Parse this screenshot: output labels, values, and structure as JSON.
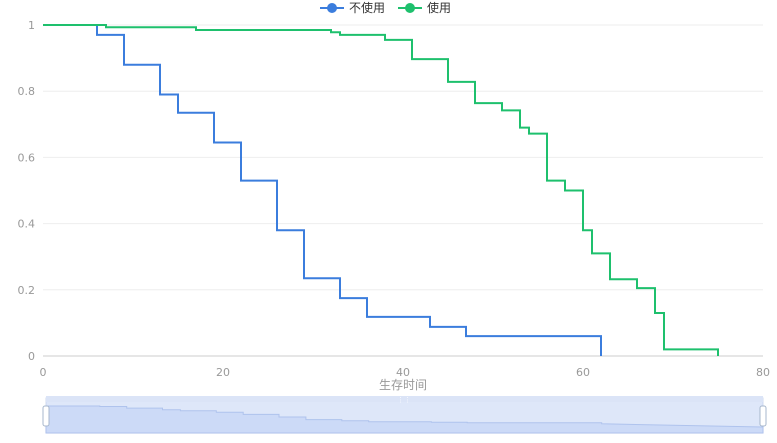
{
  "chart_data": {
    "type": "line",
    "step": true,
    "xlabel": "生存时间",
    "ylabel": "",
    "xlim": [
      0,
      80
    ],
    "ylim": [
      0,
      1
    ],
    "x_ticks": [
      "0",
      "20",
      "40",
      "60",
      "80"
    ],
    "y_ticks": [
      "0",
      "0.2",
      "0.4",
      "0.6",
      "0.8",
      "1"
    ],
    "grid": "horizontal",
    "legend_position": "top-center",
    "series": [
      {
        "name": "不使用",
        "color": "#3b7ddd",
        "points": [
          [
            0,
            1
          ],
          [
            6,
            1
          ],
          [
            6,
            0.97
          ],
          [
            9,
            0.97
          ],
          [
            9,
            0.88
          ],
          [
            13,
            0.88
          ],
          [
            13,
            0.79
          ],
          [
            15,
            0.79
          ],
          [
            15,
            0.735
          ],
          [
            19,
            0.735
          ],
          [
            19,
            0.645
          ],
          [
            22,
            0.645
          ],
          [
            22,
            0.53
          ],
          [
            26,
            0.53
          ],
          [
            26,
            0.38
          ],
          [
            29,
            0.38
          ],
          [
            29,
            0.235
          ],
          [
            33,
            0.235
          ],
          [
            33,
            0.175
          ],
          [
            36,
            0.175
          ],
          [
            36,
            0.118
          ],
          [
            43,
            0.118
          ],
          [
            43,
            0.088
          ],
          [
            47,
            0.088
          ],
          [
            47,
            0.06
          ],
          [
            62,
            0.06
          ],
          [
            62,
            0
          ]
        ]
      },
      {
        "name": "使用",
        "color": "#1ec06d",
        "points": [
          [
            0,
            1
          ],
          [
            7,
            1
          ],
          [
            7,
            0.993
          ],
          [
            17,
            0.993
          ],
          [
            17,
            0.985
          ],
          [
            32,
            0.985
          ],
          [
            32,
            0.978
          ],
          [
            33,
            0.978
          ],
          [
            33,
            0.97
          ],
          [
            38,
            0.97
          ],
          [
            38,
            0.955
          ],
          [
            41,
            0.955
          ],
          [
            41,
            0.897
          ],
          [
            45,
            0.897
          ],
          [
            45,
            0.828
          ],
          [
            48,
            0.828
          ],
          [
            48,
            0.764
          ],
          [
            51,
            0.764
          ],
          [
            51,
            0.742
          ],
          [
            53,
            0.742
          ],
          [
            53,
            0.69
          ],
          [
            54,
            0.69
          ],
          [
            54,
            0.672
          ],
          [
            56,
            0.672
          ],
          [
            56,
            0.53
          ],
          [
            58,
            0.53
          ],
          [
            58,
            0.5
          ],
          [
            60,
            0.5
          ],
          [
            60,
            0.38
          ],
          [
            61,
            0.38
          ],
          [
            61,
            0.31
          ],
          [
            63,
            0.31
          ],
          [
            63,
            0.232
          ],
          [
            66,
            0.232
          ],
          [
            66,
            0.205
          ],
          [
            68,
            0.205
          ],
          [
            68,
            0.13
          ],
          [
            69,
            0.13
          ],
          [
            69,
            0.02
          ],
          [
            75,
            0.02
          ],
          [
            75,
            0
          ]
        ]
      }
    ]
  }
}
